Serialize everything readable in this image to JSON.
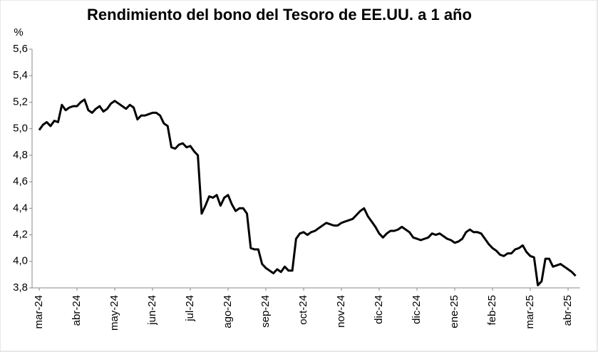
{
  "chart_data": {
    "type": "line",
    "title": "Rendimiento del bono del Tesoro de EE.UU. a 1 año",
    "y_unit": "%",
    "categories": [
      "mar-24",
      null,
      null,
      null,
      null,
      null,
      null,
      null,
      null,
      null,
      "abr-24",
      null,
      null,
      null,
      null,
      null,
      null,
      null,
      null,
      null,
      "may-24",
      null,
      null,
      null,
      null,
      null,
      null,
      null,
      null,
      null,
      "jun-24",
      null,
      null,
      null,
      null,
      null,
      null,
      null,
      null,
      null,
      "jul-24",
      null,
      null,
      null,
      null,
      null,
      null,
      null,
      null,
      null,
      "ago-24",
      null,
      null,
      null,
      null,
      null,
      null,
      null,
      null,
      null,
      "sep-24",
      null,
      null,
      null,
      null,
      null,
      null,
      null,
      null,
      null,
      "oct-24",
      null,
      null,
      null,
      null,
      null,
      null,
      null,
      null,
      null,
      "nov-24",
      null,
      null,
      null,
      null,
      null,
      null,
      null,
      null,
      null,
      "dic-24",
      null,
      null,
      null,
      null,
      null,
      null,
      null,
      null,
      null,
      "dic-24",
      null,
      null,
      null,
      null,
      null,
      null,
      null,
      null,
      null,
      "ene-25",
      null,
      null,
      null,
      null,
      null,
      null,
      null,
      null,
      null,
      "feb-25",
      null,
      null,
      null,
      null,
      null,
      null,
      null,
      null,
      null,
      "mar-25",
      null,
      null,
      null,
      null,
      null,
      null,
      null,
      null,
      null,
      "abr-25",
      null,
      null
    ],
    "series": [
      {
        "name": "Rendimiento",
        "color": "#000000",
        "values": [
          4.99,
          5.03,
          5.05,
          5.02,
          5.06,
          5.05,
          5.18,
          5.14,
          5.16,
          5.17,
          5.17,
          5.2,
          5.22,
          5.14,
          5.12,
          5.15,
          5.17,
          5.13,
          5.15,
          5.19,
          5.21,
          5.19,
          5.17,
          5.15,
          5.18,
          5.16,
          5.07,
          5.1,
          5.1,
          5.11,
          5.12,
          5.12,
          5.1,
          5.04,
          5.02,
          4.86,
          4.85,
          4.88,
          4.89,
          4.86,
          4.87,
          4.83,
          4.8,
          4.36,
          4.42,
          4.49,
          4.48,
          4.5,
          4.42,
          4.48,
          4.5,
          4.43,
          4.38,
          4.4,
          4.4,
          4.36,
          4.1,
          4.09,
          4.09,
          3.98,
          3.95,
          3.93,
          3.91,
          3.94,
          3.92,
          3.96,
          3.93,
          3.93,
          4.17,
          4.21,
          4.22,
          4.2,
          4.22,
          4.23,
          4.25,
          4.27,
          4.29,
          4.28,
          4.27,
          4.27,
          4.29,
          4.3,
          4.31,
          4.32,
          4.35,
          4.38,
          4.4,
          4.34,
          4.3,
          4.26,
          4.21,
          4.18,
          4.21,
          4.23,
          4.23,
          4.24,
          4.26,
          4.24,
          4.22,
          4.18,
          4.17,
          4.16,
          4.17,
          4.18,
          4.21,
          4.2,
          4.21,
          4.19,
          4.17,
          4.16,
          4.14,
          4.15,
          4.17,
          4.22,
          4.24,
          4.22,
          4.22,
          4.21,
          4.17,
          4.13,
          4.1,
          4.08,
          4.05,
          4.04,
          4.06,
          4.06,
          4.09,
          4.1,
          4.12,
          4.07,
          4.04,
          4.03,
          3.82,
          3.85,
          4.02,
          4.02,
          3.96,
          3.97,
          3.98,
          3.96,
          3.94,
          3.92,
          3.89
        ]
      }
    ],
    "ylim": [
      3.8,
      5.6
    ],
    "yticks": [
      {
        "value": 3.8,
        "label": "3,8"
      },
      {
        "value": 4.0,
        "label": "4,0"
      },
      {
        "value": 4.2,
        "label": "4,2"
      },
      {
        "value": 4.4,
        "label": "4,4"
      },
      {
        "value": 4.6,
        "label": "4,6"
      },
      {
        "value": 4.8,
        "label": "4,8"
      },
      {
        "value": 5.0,
        "label": "5,0"
      },
      {
        "value": 5.2,
        "label": "5,2"
      },
      {
        "value": 5.4,
        "label": "5,4"
      },
      {
        "value": 5.6,
        "label": "5,6"
      }
    ],
    "grid": false
  }
}
